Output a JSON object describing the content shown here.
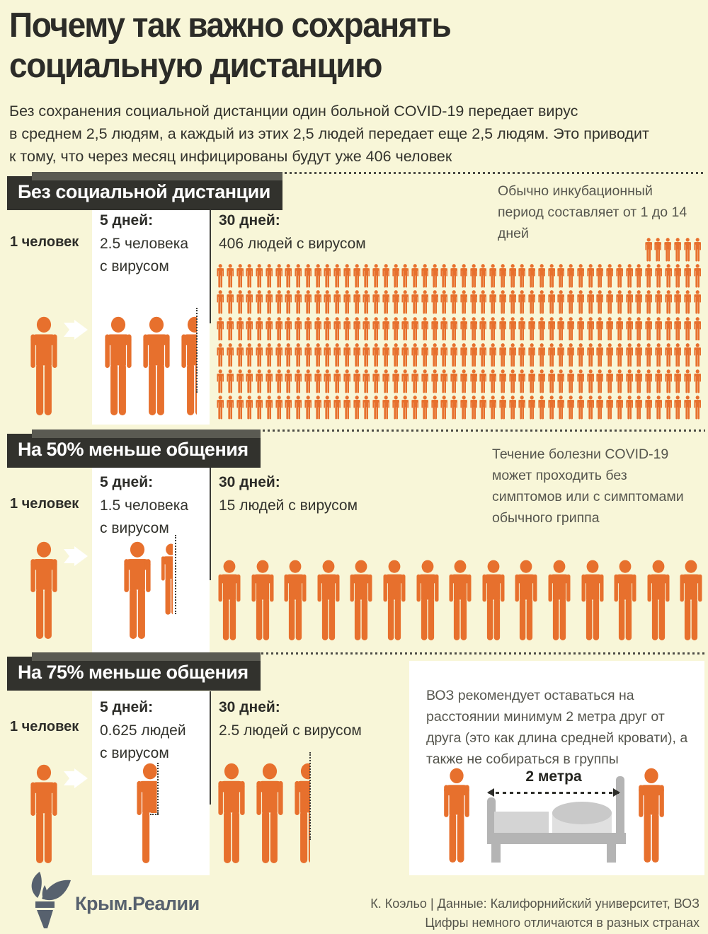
{
  "page": {
    "title_lines": [
      "Почему так важно сохранять",
      "социальную дистанцию"
    ],
    "intro_lines": [
      "Без сохранения социальной дистанции один больной COVID-19 передает вирус",
      "в среднем 2,5 людям, а каждый из этих 2,5 людей передает еще 2,5 людям. Это приводит",
      "к тому, что через месяц инфицированы будут уже 406 человек"
    ]
  },
  "colors": {
    "background": "#f8f6d8",
    "accent_orange": "#e7702d",
    "header_box": "#32322d",
    "note_gray": "#56564e",
    "logo_slate": "#57616e",
    "bed_gray": "#b4b4b4",
    "bed_light": "#d6d6d6"
  },
  "sections": [
    {
      "header": "Без социальной дистанции",
      "start_label": "1 человек",
      "day5_title": "5 дней:",
      "day5_line1": "2.5 человека",
      "day5_line2": "с вирусом",
      "day30_title": "30 дней:",
      "day30_text": "406 людей с вирусом",
      "note": "Обычно инкубационный период составляет от 1 до 14 дней"
    },
    {
      "header": "На 50% меньше общения",
      "start_label": "1 человек",
      "day5_title": "5 дней:",
      "day5_line1": "1.5 человека",
      "day5_line2": "с вирусом",
      "day30_title": "30 дней:",
      "day30_text": "15 людей с вирусом",
      "note": "Течение болезни COVID-19 может проходить без симптомов или с симптомами обычного гриппа"
    },
    {
      "header": "На 75% меньше общения",
      "start_label": "1 человек",
      "day5_title": "5 дней:",
      "day5_line1": "0.625 людей",
      "day5_line2": "с вирусом",
      "day30_title": "30 дней:",
      "day30_text": "2.5 людей с вирусом",
      "note": "ВОЗ рекомендует оставаться на расстоянии минимум 2 метра друг от друга (это как длина средней кровати), а также не собираться в группы"
    }
  ],
  "bed": {
    "distance_label": "2 метра"
  },
  "footer": {
    "logo_text": "Крым.Реалии",
    "credit_line1": "К. Коэльо | Данные: Калифорнийский университет, ВОЗ",
    "credit_line2": "Цифры немного отличаются в разных странах"
  },
  "pictograms": {
    "s1_day5": {
      "full": 2,
      "fraction": 0.5
    },
    "s1_day30_grid": {
      "rows": 6,
      "cols": 50,
      "extra_top_right": 6
    },
    "s2_day5": {
      "full": 1,
      "fraction": 0.5,
      "fraction_scale": 0.73
    },
    "s2_day30_row": 15,
    "s3_day5": {
      "full": 0,
      "fraction": 0.625
    },
    "s3_day30": {
      "full": 2,
      "fraction": 0.5
    }
  },
  "chart_data": {
    "type": "pictogram",
    "title": "Почему так важно сохранять социальную дистанцию",
    "unit": "человек с вирусом",
    "series": [
      {
        "scenario": "Без социальной дистанции",
        "start": 1,
        "day5": 2.5,
        "day30": 406
      },
      {
        "scenario": "На 50% меньше общения",
        "start": 1,
        "day5": 1.5,
        "day30": 15
      },
      {
        "scenario": "На 75% меньше общения",
        "start": 1,
        "day5": 0.625,
        "day30": 2.5
      }
    ]
  }
}
